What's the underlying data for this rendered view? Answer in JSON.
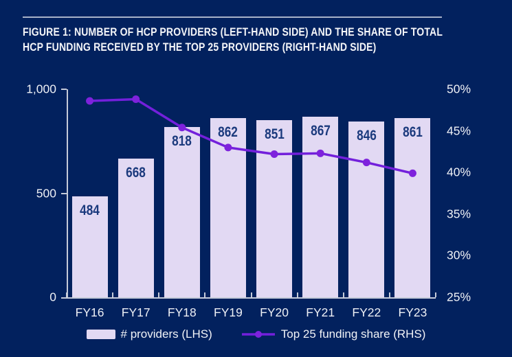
{
  "figure": {
    "title_line1": "FIGURE 1: NUMBER OF HCP PROVIDERS (LEFT-HAND SIDE) AND THE SHARE OF TOTAL",
    "title_line2": "HCP FUNDING RECEIVED BY THE TOP 25 PROVIDERS (RIGHT-HAND SIDE)"
  },
  "colors": {
    "background": "#02215E",
    "bar_fill": "#E2D9F3",
    "bar_label": "#1B3A7D",
    "line": "#7320DB",
    "marker": "#7E22DC",
    "axis": "#C6CBD9",
    "text": "#EEF0F5",
    "title_rule": "#A9B3C9"
  },
  "chart_data": {
    "type": "bar+line",
    "categories": [
      "FY16",
      "FY17",
      "FY18",
      "FY19",
      "FY20",
      "FY21",
      "FY22",
      "FY23"
    ],
    "series": [
      {
        "name": "# providers (LHS)",
        "type": "bar",
        "axis": "left",
        "values": [
          484,
          668,
          818,
          862,
          851,
          867,
          846,
          861
        ]
      },
      {
        "name": "Top 25 funding share (RHS)",
        "type": "line",
        "axis": "right",
        "unit": "%",
        "values": [
          48.6,
          48.8,
          45.4,
          43.0,
          42.2,
          42.3,
          41.2,
          39.9
        ]
      }
    ],
    "left_axis": {
      "min": 0,
      "max": 1000,
      "ticks": [
        0,
        500,
        1000
      ],
      "tick_labels": [
        "0",
        "500",
        "1,000"
      ]
    },
    "right_axis": {
      "min": 25,
      "max": 50,
      "ticks": [
        25,
        30,
        35,
        40,
        45,
        50
      ],
      "tick_labels": [
        "25%",
        "30%",
        "35%",
        "40%",
        "45%",
        "50%"
      ]
    },
    "grid": false,
    "legend_position": "bottom"
  },
  "legend": {
    "bar_label": "# providers (LHS)",
    "line_label": "Top 25 funding share (RHS)"
  }
}
